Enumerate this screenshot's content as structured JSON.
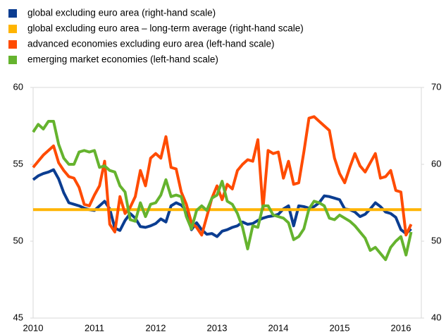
{
  "chart_data": {
    "type": "line",
    "categories": [
      "2010",
      null,
      null,
      null,
      null,
      null,
      null,
      null,
      null,
      null,
      null,
      null,
      "2011",
      null,
      null,
      null,
      null,
      null,
      null,
      null,
      null,
      null,
      null,
      null,
      "2012",
      null,
      null,
      null,
      null,
      null,
      null,
      null,
      null,
      null,
      null,
      null,
      "2013",
      null,
      null,
      null,
      null,
      null,
      null,
      null,
      null,
      null,
      null,
      null,
      "2014",
      null,
      null,
      null,
      null,
      null,
      null,
      null,
      null,
      null,
      null,
      null,
      "2015",
      null,
      null,
      null,
      null,
      null,
      null,
      null,
      null,
      null,
      null,
      null,
      "2016",
      null,
      null
    ],
    "ylim": [
      45,
      60
    ],
    "yticks": [
      45,
      50,
      55,
      60
    ],
    "y2lim": [
      40,
      70
    ],
    "y2ticks": [
      40,
      50,
      60,
      70
    ],
    "series": [
      {
        "name": "global excluding euro area (right-hand scale)",
        "color": "#0b3d91",
        "axis": "y2",
        "values": [
          58.0,
          58.5,
          58.8,
          59.0,
          59.3,
          58.1,
          56.3,
          55.0,
          54.8,
          54.6,
          54.3,
          54.1,
          54.0,
          54.6,
          55.2,
          54.2,
          51.7,
          51.4,
          52.7,
          53.6,
          53.0,
          51.9,
          51.8,
          52.0,
          52.3,
          52.9,
          52.5,
          54.6,
          55.0,
          54.7,
          54.0,
          51.5,
          52.4,
          51.5,
          50.9,
          51.0,
          50.6,
          51.3,
          51.5,
          51.8,
          52.0,
          52.5,
          52.2,
          52.3,
          52.7,
          53.0,
          53.2,
          53.3,
          53.5,
          54.2,
          54.6,
          52.0,
          54.6,
          54.5,
          54.3,
          54.5,
          55.0,
          55.9,
          55.8,
          55.6,
          55.4,
          54.2,
          54.1,
          53.8,
          53.2,
          53.5,
          54.2,
          55.0,
          54.5,
          53.8,
          53.6,
          53.1,
          51.5,
          51.0,
          51.6
        ]
      },
      {
        "name": "global excluding euro area – long-term average (right-hand scale)",
        "color": "#ffb400",
        "axis": "y2",
        "value": 54.1
      },
      {
        "name": "advanced economies excluding euro area (left-hand scale)",
        "color": "#ff4b00",
        "values": [
          54.8,
          55.2,
          55.6,
          55.9,
          56.2,
          55.1,
          54.6,
          54.2,
          54.1,
          53.5,
          52.4,
          52.3,
          53.0,
          53.6,
          55.2,
          51.1,
          50.6,
          52.9,
          51.8,
          52.2,
          52.9,
          54.6,
          53.6,
          55.4,
          55.7,
          55.4,
          56.8,
          54.8,
          54.7,
          53.2,
          52.4,
          51.2,
          50.9,
          50.4,
          51.6,
          52.8,
          53.6,
          52.7,
          53.7,
          53.4,
          54.6,
          55.0,
          55.3,
          55.2,
          56.6,
          52.1,
          55.9,
          55.7,
          55.8,
          54.1,
          55.2,
          53.7,
          53.8,
          55.8,
          58.0,
          58.1,
          57.8,
          57.5,
          57.2,
          55.4,
          54.4,
          53.8,
          54.8,
          55.7,
          54.9,
          54.5,
          55.1,
          55.7,
          54.1,
          54.2,
          54.6,
          53.3,
          53.2,
          50.4,
          51.1
        ]
      },
      {
        "name": "emerging market economies (left-hand scale)",
        "color": "#65b32e",
        "values": [
          57.1,
          57.6,
          57.3,
          57.8,
          57.8,
          56.3,
          55.4,
          55.0,
          55.0,
          55.8,
          55.9,
          55.8,
          55.9,
          54.8,
          54.9,
          54.6,
          54.5,
          53.6,
          53.2,
          51.4,
          51.3,
          52.5,
          51.6,
          52.4,
          52.5,
          53.0,
          54.0,
          52.9,
          53.0,
          52.9,
          51.6,
          50.8,
          52.0,
          52.3,
          52.0,
          52.8,
          53.0,
          53.9,
          52.6,
          52.4,
          51.8,
          50.9,
          49.5,
          51.0,
          50.9,
          52.3,
          52.3,
          51.7,
          51.6,
          51.5,
          51.2,
          50.1,
          50.3,
          50.8,
          52.1,
          52.6,
          52.5,
          52.3,
          51.5,
          51.4,
          51.7,
          51.5,
          51.3,
          51.0,
          50.6,
          50.2,
          49.4,
          49.6,
          49.2,
          48.8,
          49.6,
          50.0,
          50.3,
          49.1,
          50.6
        ]
      }
    ]
  }
}
